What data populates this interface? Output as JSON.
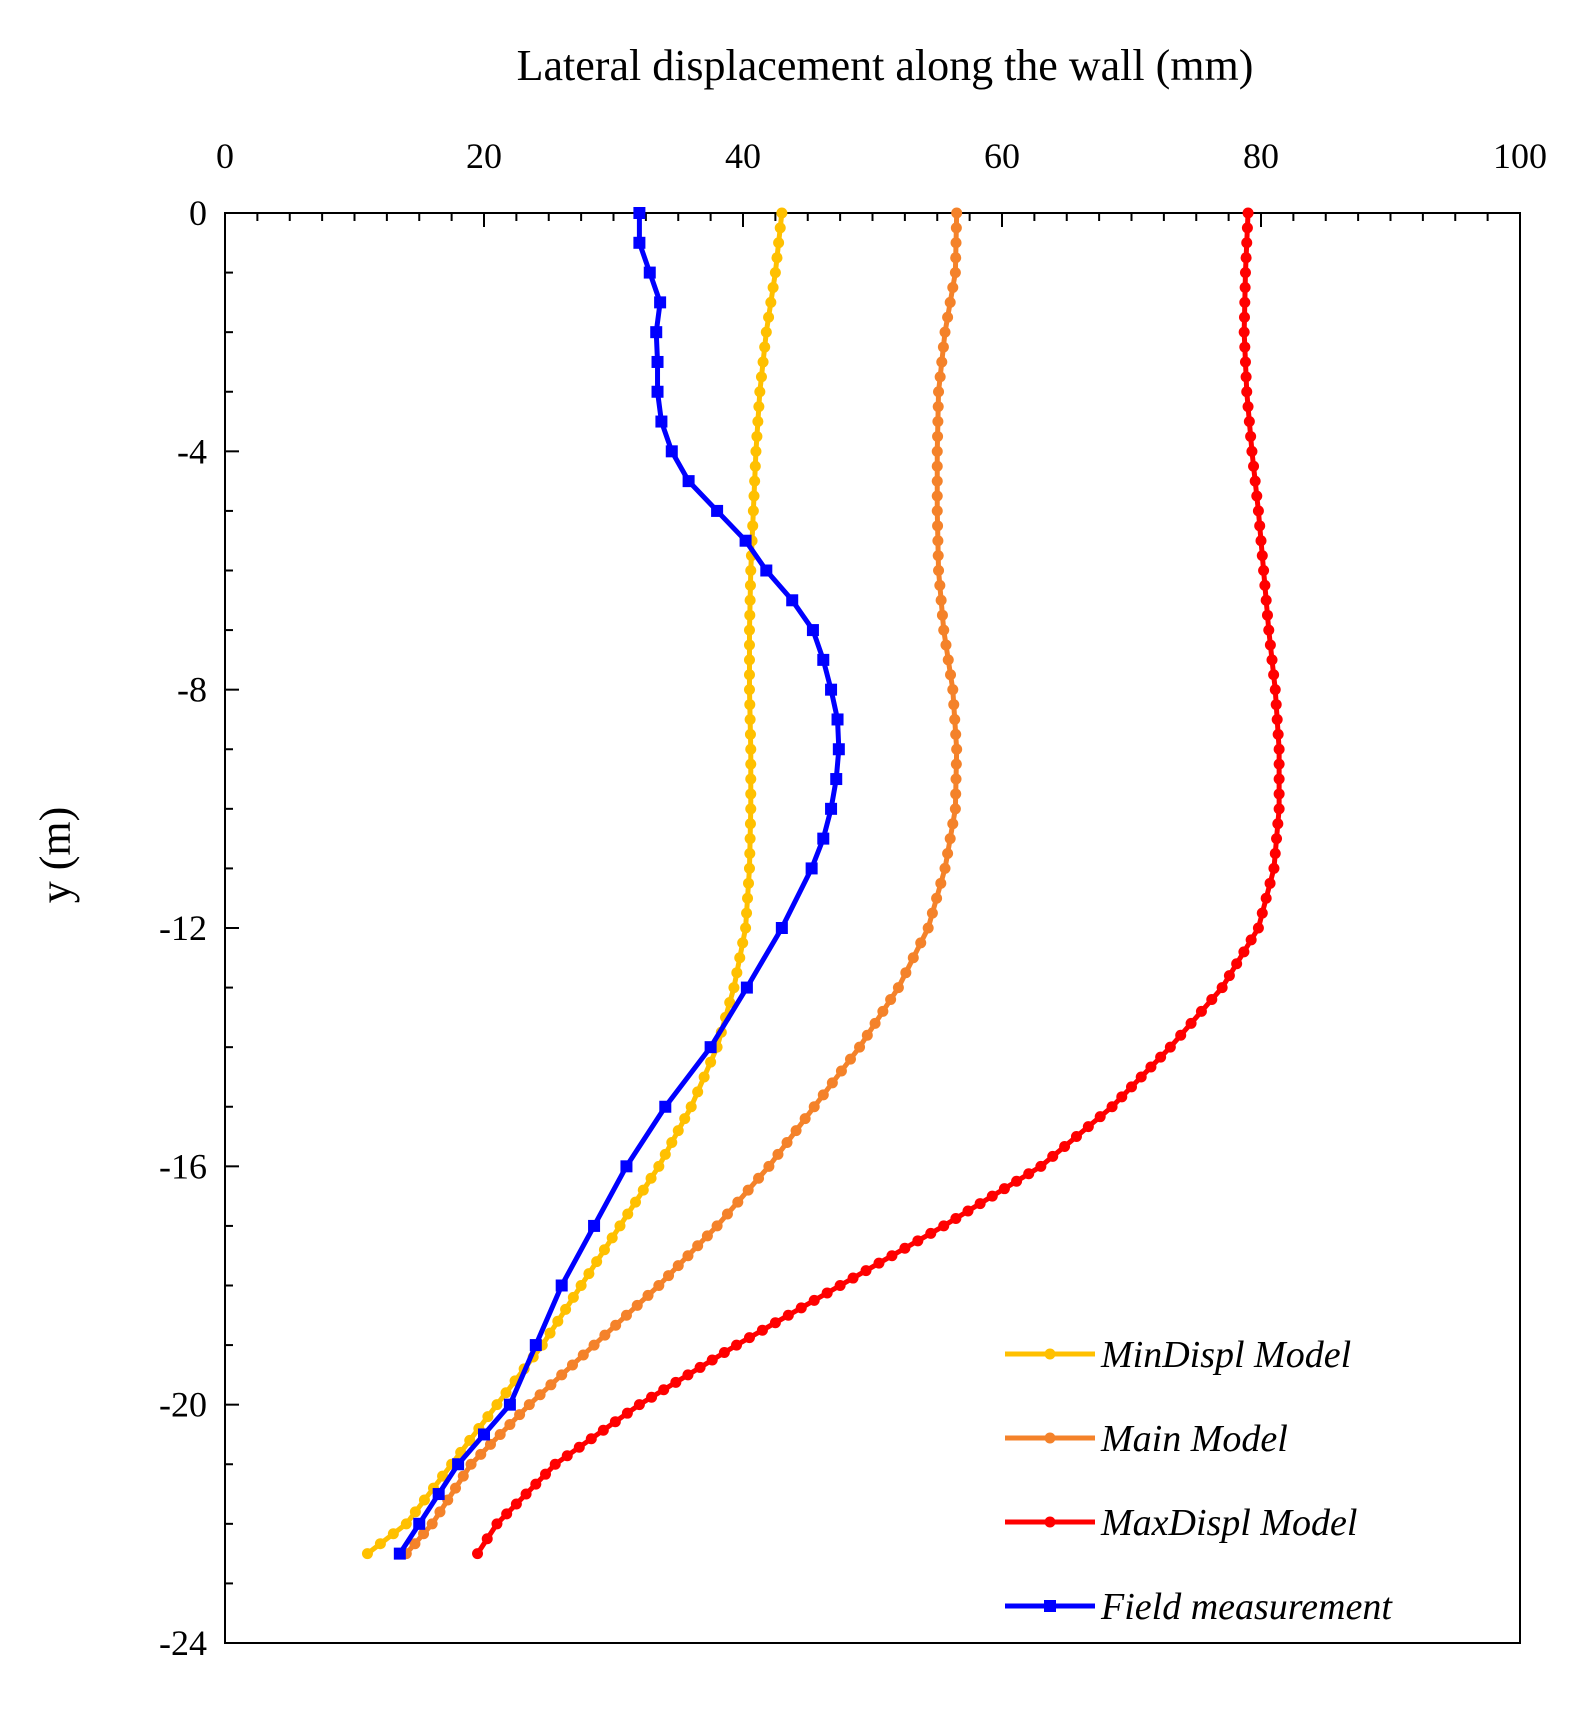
{
  "chart_data": {
    "type": "line",
    "title": "",
    "xlabel": "Lateral displacement along the wall (mm)",
    "ylabel": "y (m)",
    "xlim": [
      0,
      100
    ],
    "ylim": [
      -24,
      0
    ],
    "x_ticks": [
      0,
      20,
      40,
      60,
      80,
      100
    ],
    "y_ticks": [
      0,
      -4,
      -8,
      -12,
      -16,
      -20,
      -24
    ],
    "x_tick_labels": [
      "0",
      "20",
      "40",
      "60",
      "80",
      "100"
    ],
    "y_tick_labels": [
      "0",
      "-4",
      "-8",
      "-12",
      "-16",
      "-20",
      "-24"
    ],
    "legend_position": "bottom-right",
    "series": [
      {
        "name": "MinDispl Model",
        "color": "#FFC000",
        "marker": "circle",
        "x": [
          43.0,
          42.5,
          41.8,
          41.3,
          41.0,
          40.8,
          40.6,
          40.5,
          40.5,
          40.6,
          40.6,
          40.5,
          40.2,
          39.3,
          38.0,
          36.0,
          33.5,
          30.5,
          27.5,
          24.5,
          21.0,
          17.5,
          14.0,
          11.0
        ],
        "y": [
          0,
          -1,
          -2,
          -3,
          -4,
          -5,
          -6,
          -7,
          -8,
          -9,
          -10,
          -11,
          -12,
          -13,
          -14,
          -15,
          -16,
          -17,
          -18,
          -19,
          -20,
          -21,
          -22,
          -22.5
        ]
      },
      {
        "name": "Main Model",
        "color": "#F4822A",
        "marker": "circle",
        "x": [
          56.5,
          56.4,
          55.6,
          55.1,
          55.0,
          55.0,
          55.1,
          55.5,
          56.2,
          56.5,
          56.4,
          55.6,
          54.3,
          52.0,
          49.0,
          45.5,
          42.0,
          38.0,
          33.5,
          28.5,
          23.5,
          19.0,
          16.0,
          14.0
        ],
        "y": [
          0,
          -1,
          -2,
          -3,
          -4,
          -5,
          -6,
          -7,
          -8,
          -9,
          -10,
          -11,
          -12,
          -13,
          -14,
          -15,
          -16,
          -17,
          -18,
          -19,
          -20,
          -21,
          -22,
          -22.5
        ]
      },
      {
        "name": "MaxDispl Model",
        "color": "#FF0000",
        "marker": "circle",
        "x": [
          79.0,
          78.8,
          78.7,
          78.9,
          79.3,
          79.8,
          80.2,
          80.6,
          81.1,
          81.4,
          81.4,
          81.0,
          79.8,
          77.0,
          73.0,
          68.5,
          63.0,
          55.5,
          47.5,
          39.5,
          32.0,
          25.5,
          21.0,
          19.5
        ],
        "y": [
          0,
          -1,
          -2,
          -3,
          -4,
          -5,
          -6,
          -7,
          -8,
          -9,
          -10,
          -11,
          -12,
          -13,
          -14,
          -15,
          -16,
          -17,
          -18,
          -19,
          -20,
          -21,
          -22,
          -22.5
        ]
      },
      {
        "name": "Field measurement",
        "color": "#0000FF",
        "marker": "square",
        "x": [
          32.0,
          32.0,
          32.8,
          33.6,
          33.3,
          33.4,
          33.4,
          33.7,
          34.5,
          35.8,
          38.0,
          40.2,
          41.8,
          43.8,
          45.4,
          46.2,
          46.8,
          47.3,
          47.4,
          47.2,
          46.8,
          46.2,
          45.3,
          43.0,
          40.3,
          37.5,
          34.0,
          31.0,
          28.5,
          26.0,
          24.0,
          22.0,
          20.0,
          18.0,
          16.5,
          15.0,
          13.5
        ],
        "y": [
          0,
          -0.5,
          -1.0,
          -1.5,
          -2.0,
          -2.5,
          -3.0,
          -3.5,
          -4.0,
          -4.5,
          -5.0,
          -5.5,
          -6.0,
          -6.5,
          -7.0,
          -7.5,
          -8.0,
          -8.5,
          -9.0,
          -9.5,
          -10.0,
          -10.5,
          -11.0,
          -12.0,
          -13.0,
          -14.0,
          -15.0,
          -16.0,
          -17.0,
          -18.0,
          -19.0,
          -20.0,
          -20.5,
          -21.0,
          -21.5,
          -22.0,
          -22.5
        ]
      }
    ]
  }
}
